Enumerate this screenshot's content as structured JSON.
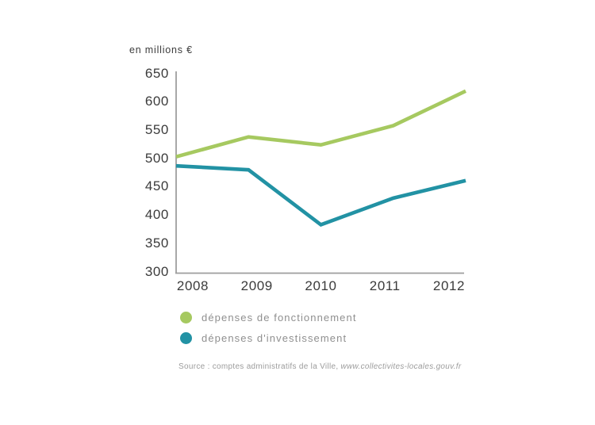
{
  "chart": {
    "unit_label": "en millions €",
    "colors": {
      "fonctionnement": "#a6c960",
      "investissement": "#2292a4",
      "axis": "#9e9e9e",
      "tick_text": "#3b3b3b",
      "legend_text": "#8f8f8f",
      "source_text": "#9c9c9c"
    },
    "source": {
      "prefix": "Source : comptes administratifs de la Ville, ",
      "link": "www.collectivites-locales.gouv.fr"
    }
  },
  "chart_data": {
    "type": "line",
    "title": "",
    "xlabel": "",
    "ylabel": "en millions €",
    "x": [
      "2008",
      "2009",
      "2010",
      "2011",
      "2012"
    ],
    "series": [
      {
        "name": "dépenses de fonctionnement",
        "color": "#a6c960",
        "values": [
          502,
          537,
          523,
          557,
          618
        ]
      },
      {
        "name": "dépenses d'investissement",
        "color": "#2292a4",
        "values": [
          486,
          479,
          382,
          429,
          460
        ]
      }
    ],
    "ylim": [
      300,
      650
    ],
    "yticks": [
      300,
      350,
      400,
      450,
      500,
      550,
      600,
      650
    ],
    "grid": false,
    "legend_position": "bottom-left"
  }
}
